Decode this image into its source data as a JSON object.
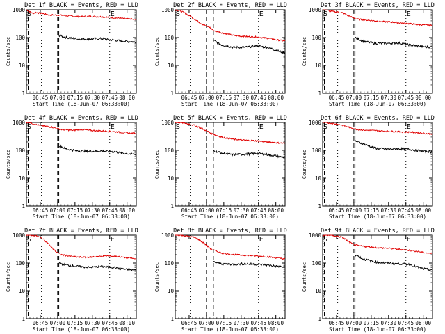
{
  "chart_data": {
    "type": "line",
    "layout": "3x3 grid",
    "scale": "log",
    "ylim": [
      1,
      1000
    ],
    "xlim": [
      0,
      95
    ],
    "ylabel": "Counts/sec",
    "xlabel": "Start Time (18-Jun-07 06:33:00)",
    "ytick_labels": [
      "1",
      "10",
      "100",
      "1000"
    ],
    "xticks": [
      {
        "t": 12,
        "label": "06:45"
      },
      {
        "t": 27,
        "label": "07:00"
      },
      {
        "t": 42,
        "label": "07:15"
      },
      {
        "t": 57,
        "label": "07:30"
      },
      {
        "t": 72,
        "label": "07:45"
      },
      {
        "t": 87,
        "label": "08:00"
      }
    ],
    "legend": {
      "black": "Events",
      "red": "LLD"
    },
    "marker_labels": [
      "S",
      "E"
    ],
    "panels": [
      {
        "title": "Det 1f BLACK = Events, RED = LLD",
        "red_decay_end": 20,
        "black_start": 28,
        "red": [
          [
            0,
            1000
          ],
          [
            2,
            900
          ],
          [
            4,
            800
          ],
          [
            6,
            750
          ],
          [
            8,
            800
          ],
          [
            10,
            780
          ],
          [
            12,
            750
          ],
          [
            14,
            730
          ],
          [
            16,
            700
          ],
          [
            18,
            680
          ],
          [
            20,
            650
          ],
          [
            28,
            650
          ],
          [
            35,
            610
          ],
          [
            45,
            570
          ],
          [
            55,
            580
          ],
          [
            65,
            560
          ],
          [
            75,
            520
          ],
          [
            85,
            480
          ],
          [
            95,
            440
          ]
        ],
        "black": [
          [
            28,
            120
          ],
          [
            35,
            100
          ],
          [
            45,
            88
          ],
          [
            55,
            90
          ],
          [
            65,
            92
          ],
          [
            75,
            82
          ],
          [
            85,
            74
          ],
          [
            95,
            70
          ]
        ]
      },
      {
        "title": "Det 2f BLACK = Events, RED = LLD",
        "red_decay_end": 32,
        "black_start": 33,
        "red": [
          [
            0,
            1000
          ],
          [
            3,
            950
          ],
          [
            6,
            850
          ],
          [
            10,
            700
          ],
          [
            14,
            550
          ],
          [
            18,
            420
          ],
          [
            22,
            330
          ],
          [
            26,
            270
          ],
          [
            30,
            230
          ],
          [
            33,
            180
          ],
          [
            40,
            150
          ],
          [
            50,
            120
          ],
          [
            60,
            110
          ],
          [
            70,
            105
          ],
          [
            80,
            95
          ],
          [
            90,
            80
          ],
          [
            95,
            75
          ]
        ],
        "black": [
          [
            33,
            80
          ],
          [
            40,
            55
          ],
          [
            50,
            45
          ],
          [
            60,
            45
          ],
          [
            70,
            50
          ],
          [
            80,
            45
          ],
          [
            90,
            32
          ],
          [
            95,
            28
          ]
        ]
      },
      {
        "title": "Det 3f BLACK = Events, RED = LLD",
        "red_decay_end": 26,
        "black_start": 28,
        "red": [
          [
            0,
            1000
          ],
          [
            3,
            1000
          ],
          [
            6,
            900
          ],
          [
            10,
            850
          ],
          [
            14,
            820
          ],
          [
            18,
            760
          ],
          [
            22,
            620
          ],
          [
            26,
            520
          ],
          [
            30,
            460
          ],
          [
            40,
            420
          ],
          [
            50,
            380
          ],
          [
            60,
            360
          ],
          [
            70,
            330
          ],
          [
            80,
            300
          ],
          [
            90,
            280
          ],
          [
            95,
            270
          ]
        ],
        "black": [
          [
            28,
            100
          ],
          [
            35,
            75
          ],
          [
            45,
            62
          ],
          [
            55,
            62
          ],
          [
            65,
            65
          ],
          [
            75,
            55
          ],
          [
            85,
            48
          ],
          [
            95,
            45
          ]
        ]
      },
      {
        "title": "Det 4f BLACK = Events, RED = LLD",
        "red_decay_end": 26,
        "black_start": 28,
        "red": [
          [
            0,
            1000
          ],
          [
            3,
            1000
          ],
          [
            6,
            900
          ],
          [
            10,
            800
          ],
          [
            14,
            760
          ],
          [
            18,
            720
          ],
          [
            22,
            680
          ],
          [
            26,
            620
          ],
          [
            30,
            560
          ],
          [
            40,
            520
          ],
          [
            48,
            560
          ],
          [
            55,
            520
          ],
          [
            65,
            500
          ],
          [
            75,
            470
          ],
          [
            85,
            430
          ],
          [
            95,
            400
          ]
        ],
        "black": [
          [
            28,
            150
          ],
          [
            35,
            110
          ],
          [
            45,
            95
          ],
          [
            55,
            92
          ],
          [
            65,
            95
          ],
          [
            75,
            90
          ],
          [
            85,
            78
          ],
          [
            95,
            70
          ]
        ]
      },
      {
        "title": "Det 5f BLACK = Events, RED = LLD",
        "red_decay_end": 32,
        "black_start": 33,
        "red": [
          [
            0,
            1000
          ],
          [
            4,
            1000
          ],
          [
            8,
            950
          ],
          [
            12,
            880
          ],
          [
            16,
            800
          ],
          [
            20,
            700
          ],
          [
            24,
            580
          ],
          [
            28,
            480
          ],
          [
            32,
            390
          ],
          [
            40,
            300
          ],
          [
            50,
            250
          ],
          [
            60,
            230
          ],
          [
            70,
            220
          ],
          [
            80,
            200
          ],
          [
            90,
            185
          ],
          [
            95,
            180
          ]
        ],
        "black": [
          [
            33,
            100
          ],
          [
            40,
            80
          ],
          [
            50,
            70
          ],
          [
            60,
            72
          ],
          [
            70,
            78
          ],
          [
            80,
            70
          ],
          [
            90,
            60
          ],
          [
            95,
            55
          ]
        ]
      },
      {
        "title": "Det 6f BLACK = Events, RED = LLD",
        "red_decay_end": 26,
        "black_start": 28,
        "red": [
          [
            0,
            1000
          ],
          [
            3,
            1000
          ],
          [
            6,
            950
          ],
          [
            10,
            900
          ],
          [
            14,
            850
          ],
          [
            18,
            780
          ],
          [
            22,
            700
          ],
          [
            26,
            620
          ],
          [
            30,
            560
          ],
          [
            40,
            520
          ],
          [
            50,
            500
          ],
          [
            60,
            480
          ],
          [
            70,
            460
          ],
          [
            80,
            440
          ],
          [
            90,
            400
          ],
          [
            95,
            390
          ]
        ],
        "black": [
          [
            28,
            220
          ],
          [
            35,
            170
          ],
          [
            45,
            120
          ],
          [
            55,
            110
          ],
          [
            65,
            115
          ],
          [
            75,
            110
          ],
          [
            85,
            95
          ],
          [
            95,
            88
          ]
        ]
      },
      {
        "title": "Det 7f BLACK = Events, RED = LLD",
        "red_decay_end": 26,
        "black_start": 28,
        "red": [
          [
            0,
            1000
          ],
          [
            3,
            1000
          ],
          [
            6,
            1000
          ],
          [
            10,
            900
          ],
          [
            14,
            750
          ],
          [
            18,
            550
          ],
          [
            22,
            350
          ],
          [
            26,
            250
          ],
          [
            30,
            200
          ],
          [
            40,
            170
          ],
          [
            50,
            160
          ],
          [
            60,
            170
          ],
          [
            70,
            180
          ],
          [
            80,
            170
          ],
          [
            90,
            150
          ],
          [
            95,
            140
          ]
        ],
        "black": [
          [
            28,
            100
          ],
          [
            35,
            85
          ],
          [
            45,
            75
          ],
          [
            55,
            70
          ],
          [
            65,
            75
          ],
          [
            75,
            70
          ],
          [
            85,
            60
          ],
          [
            95,
            55
          ]
        ]
      },
      {
        "title": "Det 8f BLACK = Events, RED = LLD",
        "red_decay_end": 32,
        "black_start": 33,
        "red": [
          [
            0,
            1000
          ],
          [
            4,
            1000
          ],
          [
            8,
            950
          ],
          [
            12,
            900
          ],
          [
            16,
            850
          ],
          [
            20,
            700
          ],
          [
            24,
            550
          ],
          [
            28,
            400
          ],
          [
            32,
            300
          ],
          [
            40,
            230
          ],
          [
            50,
            200
          ],
          [
            60,
            190
          ],
          [
            70,
            180
          ],
          [
            80,
            170
          ],
          [
            90,
            150
          ],
          [
            95,
            140
          ]
        ],
        "black": [
          [
            33,
            110
          ],
          [
            40,
            95
          ],
          [
            50,
            90
          ],
          [
            60,
            95
          ],
          [
            70,
            90
          ],
          [
            80,
            85
          ],
          [
            90,
            75
          ],
          [
            95,
            70
          ]
        ]
      },
      {
        "title": "Det 9f BLACK = Events, RED = LLD",
        "red_decay_end": 26,
        "black_start": 28,
        "red": [
          [
            0,
            1000
          ],
          [
            3,
            1000
          ],
          [
            6,
            1000
          ],
          [
            10,
            950
          ],
          [
            14,
            900
          ],
          [
            18,
            800
          ],
          [
            22,
            600
          ],
          [
            26,
            480
          ],
          [
            30,
            420
          ],
          [
            40,
            380
          ],
          [
            50,
            350
          ],
          [
            60,
            330
          ],
          [
            70,
            300
          ],
          [
            80,
            270
          ],
          [
            90,
            230
          ],
          [
            95,
            220
          ]
        ],
        "black": [
          [
            28,
            200
          ],
          [
            35,
            140
          ],
          [
            45,
            110
          ],
          [
            55,
            100
          ],
          [
            65,
            95
          ],
          [
            75,
            90
          ],
          [
            85,
            65
          ],
          [
            95,
            55
          ]
        ]
      }
    ],
    "vlines": {
      "dashed": [
        1.5,
        27
      ],
      "dotted": [
        13
      ]
    },
    "E_time": 72
  }
}
